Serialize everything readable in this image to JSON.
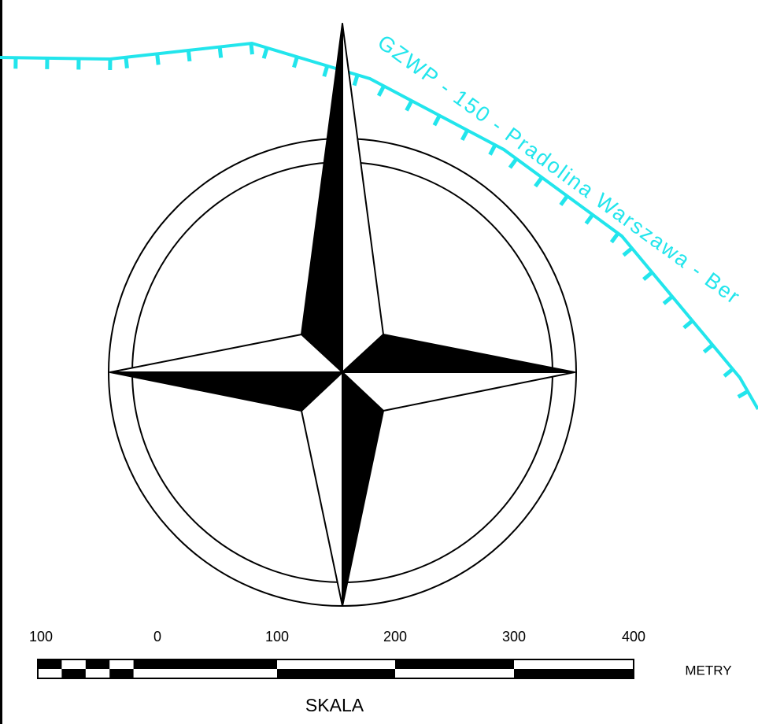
{
  "boundary_label": "GZWP - 150 - Pradolina Warszawa - Ber",
  "scale": {
    "labels": [
      100,
      0,
      100,
      200,
      300,
      400
    ],
    "unit": "METRY",
    "title": "SKALA"
  }
}
